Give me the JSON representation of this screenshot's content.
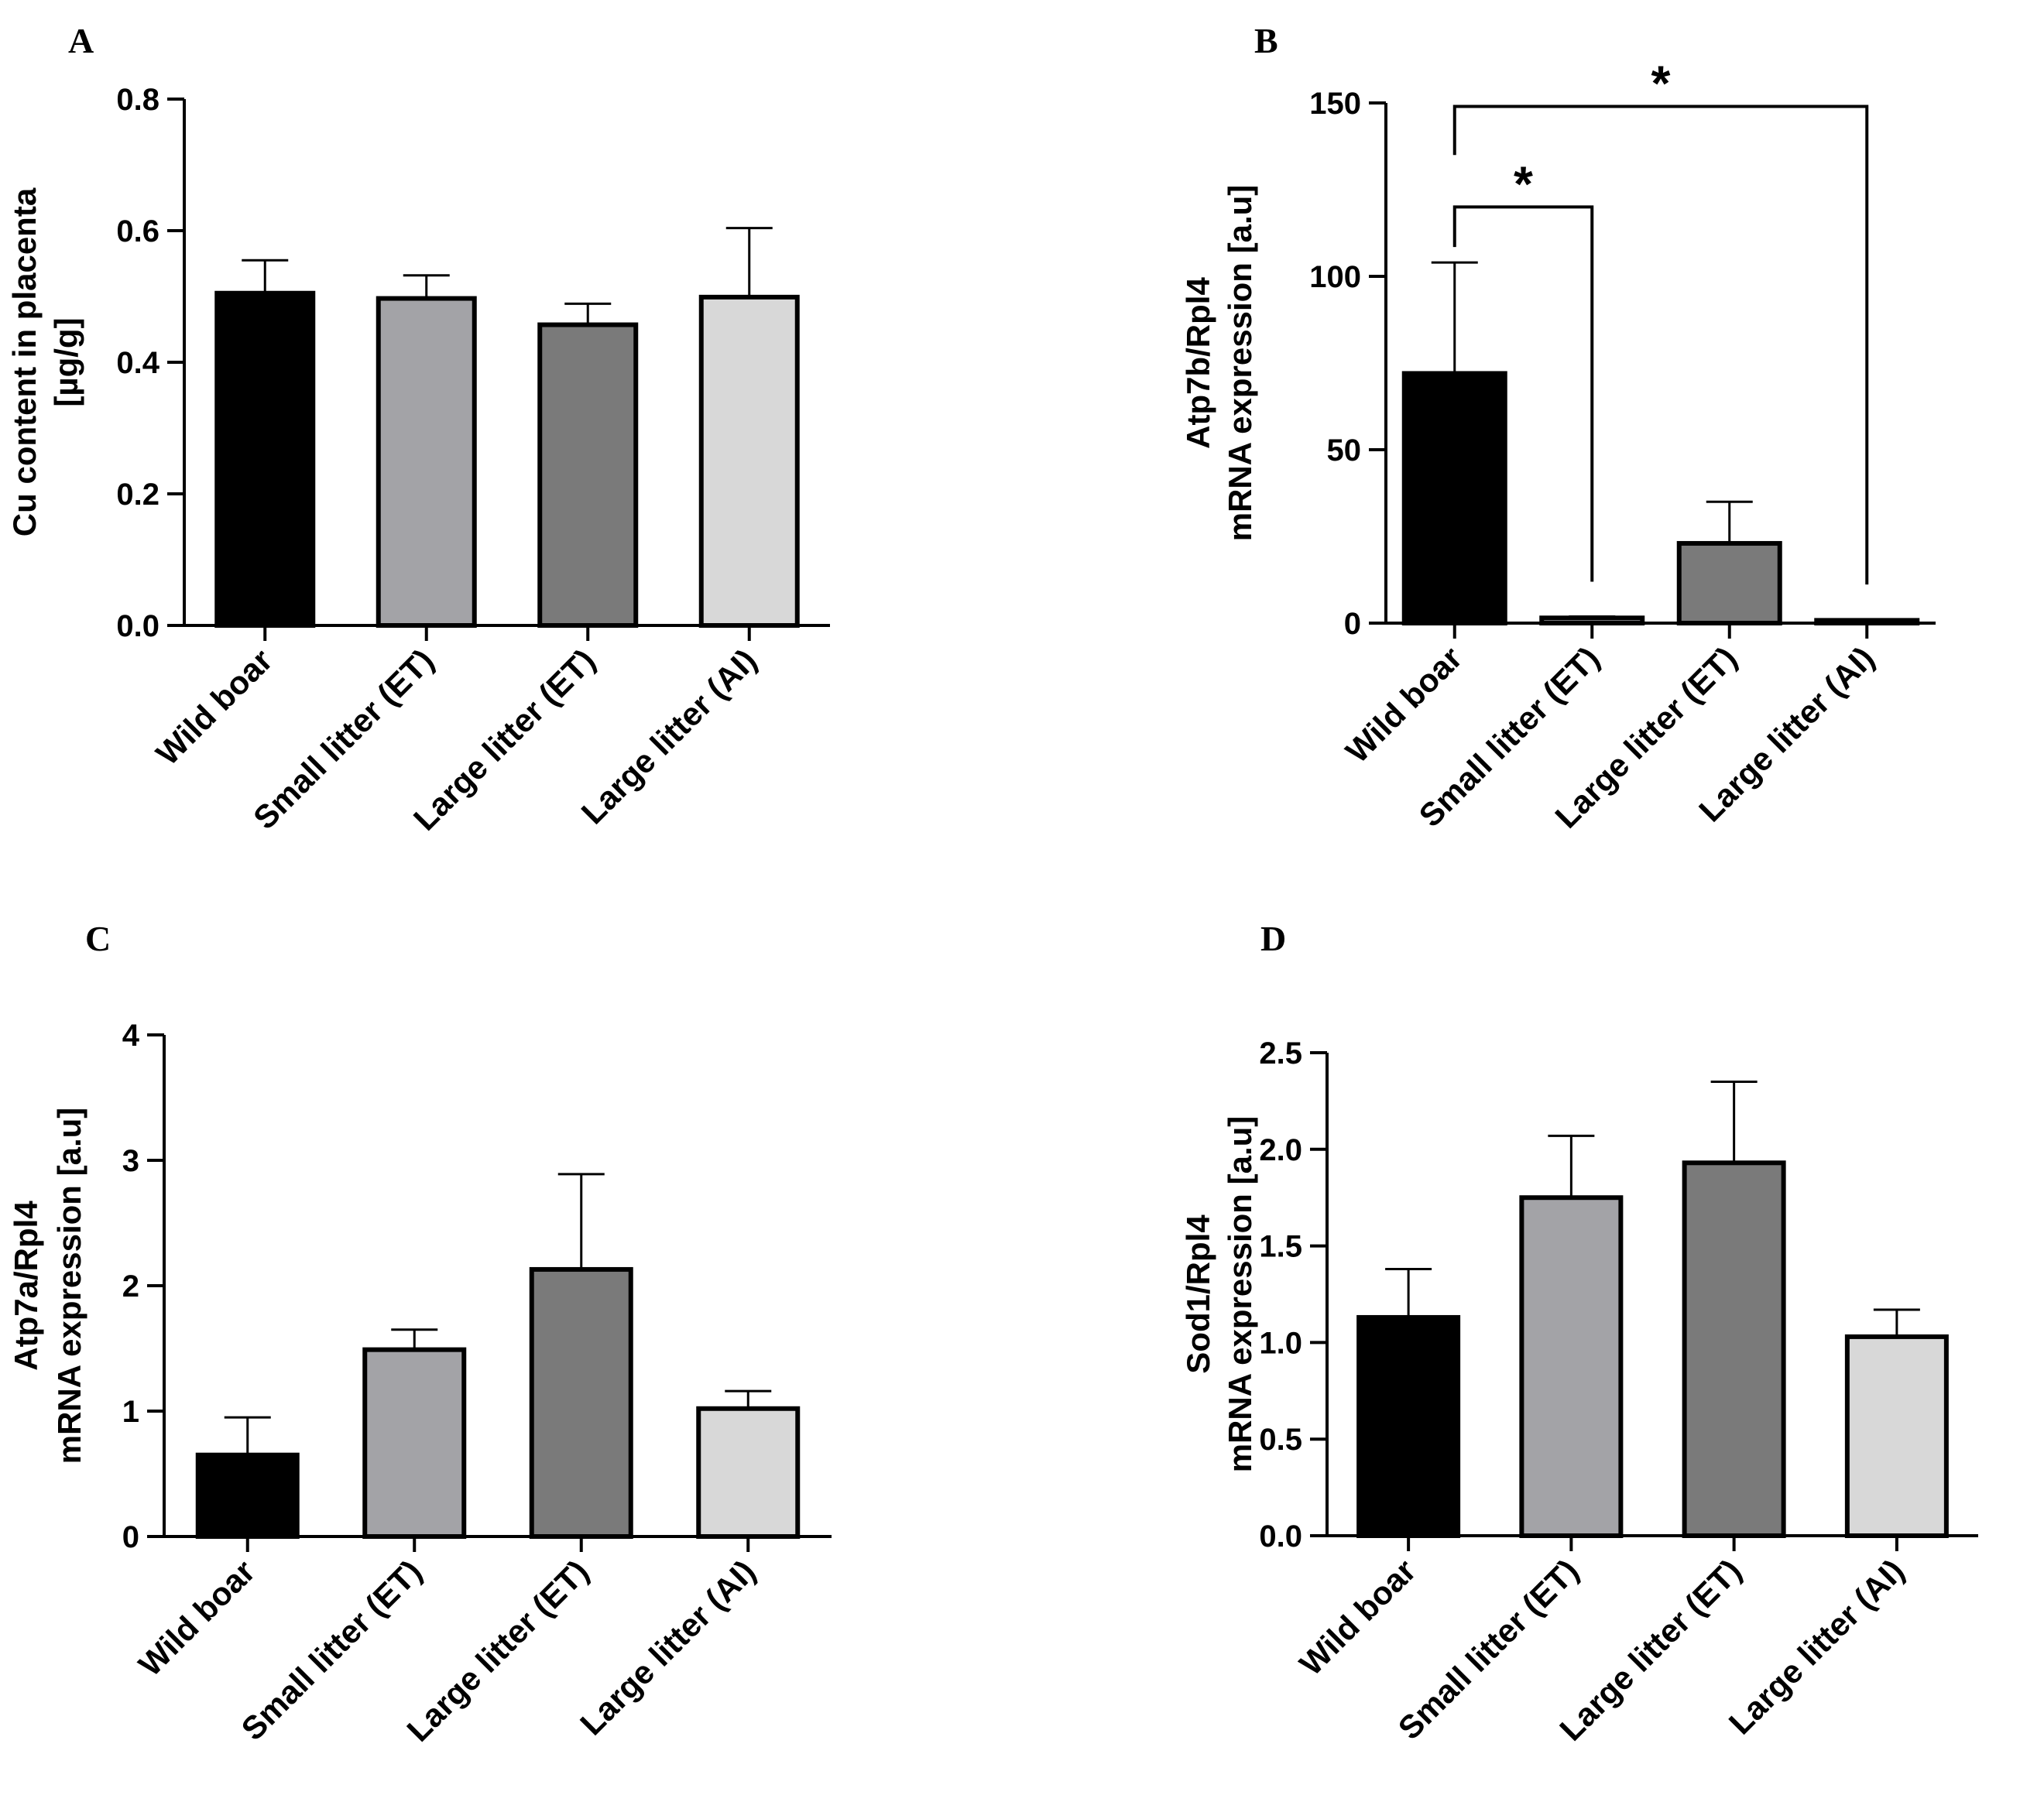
{
  "chart_data": [
    {
      "panel": "A",
      "type": "bar",
      "categories": [
        "Wild boar",
        "Small litter (ET)",
        "Large litter (ET)",
        "Large litter (AI)"
      ],
      "values": [
        0.505,
        0.497,
        0.457,
        0.499
      ],
      "errors": [
        0.05,
        0.035,
        0.032,
        0.105
      ],
      "ylabel_lines": [
        "Cu content in placenta",
        "[µg/g]"
      ],
      "ylim": [
        0,
        0.8
      ],
      "ticks": [
        0,
        0.2,
        0.4,
        0.6,
        0.8
      ],
      "tick_labels": [
        "0.0",
        "0.2",
        "0.4",
        "0.6",
        "0.8"
      ],
      "bar_colors": [
        "#000000",
        "#a3a3a7",
        "#7a7a7a",
        "#d8d8d8"
      ],
      "significance": []
    },
    {
      "panel": "B",
      "type": "bar",
      "categories": [
        "Wild boar",
        "Small litter (ET)",
        "Large litter (ET)",
        "Large litter (AI)"
      ],
      "values": [
        72,
        1.5,
        23,
        0.8
      ],
      "errors": [
        32,
        0.4,
        12,
        0.3
      ],
      "ylabel_lines": [
        "Atp7b/Rpl4",
        "mRNA expression [a.u]"
      ],
      "ylim": [
        0,
        150
      ],
      "ticks": [
        0,
        50,
        100,
        150
      ],
      "tick_labels": [
        "0",
        "50",
        "100",
        "150"
      ],
      "bar_colors": [
        "#000000",
        "#a3a3a7",
        "#7a7a7a",
        "#d8d8d8"
      ],
      "significance": [
        {
          "from": 0,
          "to": 1,
          "label": "*",
          "level": 120
        },
        {
          "from": 0,
          "to": 3,
          "label": "*",
          "level": 149
        }
      ]
    },
    {
      "panel": "C",
      "type": "bar",
      "categories": [
        "Wild boar",
        "Small litter (ET)",
        "Large litter (ET)",
        "Large litter (AI)"
      ],
      "values": [
        0.65,
        1.49,
        2.13,
        1.02
      ],
      "errors": [
        0.3,
        0.16,
        0.76,
        0.14
      ],
      "ylabel_lines": [
        "Atp7a/Rpl4",
        "mRNA expression [a.u]"
      ],
      "ylim": [
        0,
        4
      ],
      "ticks": [
        0,
        1,
        2,
        3,
        4
      ],
      "tick_labels": [
        "0",
        "1",
        "2",
        "3",
        "4"
      ],
      "bar_colors": [
        "#000000",
        "#a3a3a7",
        "#7a7a7a",
        "#d8d8d8"
      ],
      "significance": []
    },
    {
      "panel": "D",
      "type": "bar",
      "categories": [
        "Wild boar",
        "Small litter (ET)",
        "Large litter (ET)",
        "Large litter (AI)"
      ],
      "values": [
        1.13,
        1.75,
        1.93,
        1.03
      ],
      "errors": [
        0.25,
        0.32,
        0.42,
        0.14
      ],
      "ylabel_lines": [
        "Sod1/Rpl4",
        "mRNA expression [a.u]"
      ],
      "ylim": [
        0,
        2.5
      ],
      "ticks": [
        0,
        0.5,
        1,
        1.5,
        2,
        2.5
      ],
      "tick_labels": [
        "0.0",
        "0.5",
        "1.0",
        "1.5",
        "2.0",
        "2.5"
      ],
      "bar_colors": [
        "#000000",
        "#a3a3a7",
        "#7a7a7a",
        "#d8d8d8"
      ],
      "significance": []
    }
  ]
}
